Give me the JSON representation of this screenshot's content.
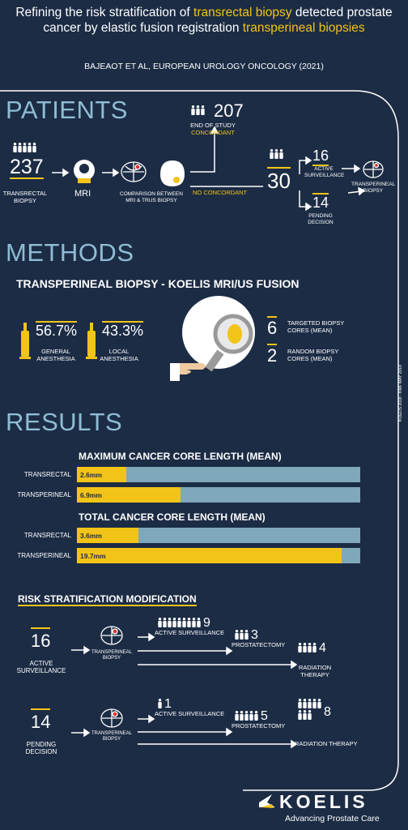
{
  "header": {
    "title_parts": [
      {
        "text": "Refining the risk stratification of ",
        "highlight": false
      },
      {
        "text": "transrectal biopsy",
        "highlight": true
      },
      {
        "text": " detected prostate cancer by elastic fusion registration ",
        "highlight": false
      },
      {
        "text": "transperineal biopsies",
        "highlight": true
      }
    ],
    "citation": "BAJEAOT ET AL, EUROPEAN UROLOGY ONCOLOGY (2021)"
  },
  "patients": {
    "heading": "PATIENTS",
    "total": "237",
    "total_label": "TRANSRECTAL BIOPSY",
    "mri": "MRI",
    "comparison": "COMPARISON BETWEEN MRI & TRUS BIOPSY",
    "concordant": "207",
    "concordant_label": "END OF STUDY",
    "concordant_tag": "CONCORDANT",
    "no_concordant": "NO CONCORDANT",
    "discordant": "30",
    "active": "16",
    "active_label": "ACTIVE SURVEILLANCE",
    "pending": "14",
    "pending_label": "PENDING DECISION",
    "biopsy": "TRANSPERINEAL BIOPSY"
  },
  "methods": {
    "heading": "METHODS",
    "subtitle": "TRANSPERINEAL BIOPSY -  KOELIS MRI/US FUSION",
    "general": "56.7%",
    "general_label": "GENERAL ANESTHESIA",
    "local": "43.3%",
    "local_label": "LOCAL ANESTHESIA",
    "targeted": "6",
    "targeted_label": "TARGETED BIOPSY CORES (MEAN)",
    "random": "2",
    "random_label": "RANDOM BIOPSY CORES (MEAN)"
  },
  "results": {
    "heading": "RESULTS",
    "charts": [
      {
        "title": "MAXIMUM CANCER CORE LENGTH (MEAN)",
        "bars": [
          {
            "name": "TRANSRECTAL",
            "value": 2.6,
            "label": "2.6mm"
          },
          {
            "name": "TRANSPERINEAL",
            "value": 6.9,
            "label": "6.9mm"
          }
        ]
      },
      {
        "title": "TOTAL CANCER CORE LENGTH (MEAN)",
        "bars": [
          {
            "name": "TRANSRECTAL",
            "value": 3.6,
            "label": "3.6mm"
          },
          {
            "name": "TRANSPERINEAL",
            "value": 19.7,
            "label": "19.7mm"
          }
        ]
      }
    ]
  },
  "risk": {
    "heading": "RISK STRATIFICATION MODIFICATION",
    "groups": [
      {
        "count": "16",
        "label": "ACTIVE SURVEILLANCE",
        "biopsy": "TRANSPERINEAL BIOPSY",
        "outcomes": [
          {
            "value": 9,
            "label": "ACTIVE SURVEILLANCE"
          },
          {
            "value": 3,
            "label": "PROSTATECTOMY"
          },
          {
            "value": 4,
            "label": "RADIATION THERAPY"
          }
        ]
      },
      {
        "count": "14",
        "label": "PENDING DECISION",
        "biopsy": "TRANSPERINEAL BIOPSY",
        "outcomes": [
          {
            "value": 1,
            "label": "ACTIVE SURVEILLANCE"
          },
          {
            "value": 5,
            "label": "PROSTATECTOMY"
          },
          {
            "value": 8,
            "label": "RADIATION THERAPY"
          }
        ]
      }
    ]
  },
  "side_note": "KOELIS 2018 - KMF MAY 2018",
  "footer": {
    "brand": "KOELIS",
    "tagline": "Advancing Prostate Care"
  }
}
